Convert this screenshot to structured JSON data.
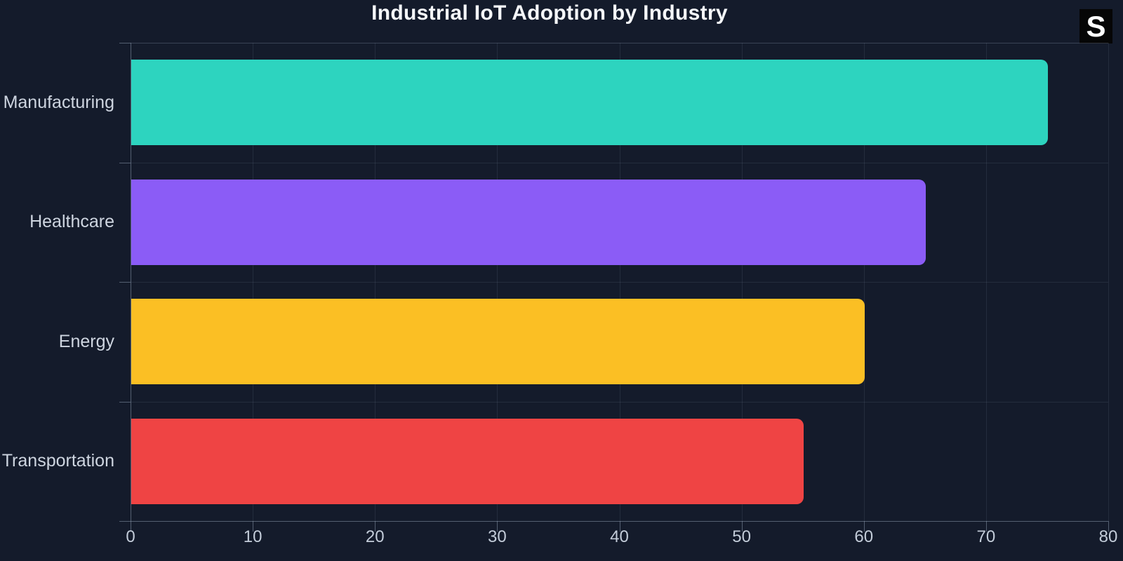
{
  "title": "Industrial IoT Adoption by Industry",
  "badge": {
    "label": "S"
  },
  "colors": {
    "background": "#141b2b",
    "title_text": "#f5f7fa",
    "axis_text": "#c3ccd9",
    "category_text": "#ced5e0",
    "grid": "rgba(148,163,184,0.13)",
    "axis_line": "rgba(148,163,184,0.5)"
  },
  "chart_data": {
    "type": "bar",
    "orientation": "horizontal",
    "title": "Industrial IoT Adoption by Industry",
    "xlabel": "",
    "ylabel": "",
    "categories": [
      "Manufacturing",
      "Healthcare",
      "Energy",
      "Transportation"
    ],
    "values": [
      75,
      65,
      60,
      55
    ],
    "bar_colors": [
      "#2dd4bf",
      "#8b5cf6",
      "#fbbf24",
      "#ef4444"
    ],
    "xlim": [
      0,
      80
    ],
    "x_ticks": [
      0,
      10,
      20,
      30,
      40,
      50,
      60,
      70,
      80
    ],
    "grid": true,
    "legend": false
  }
}
